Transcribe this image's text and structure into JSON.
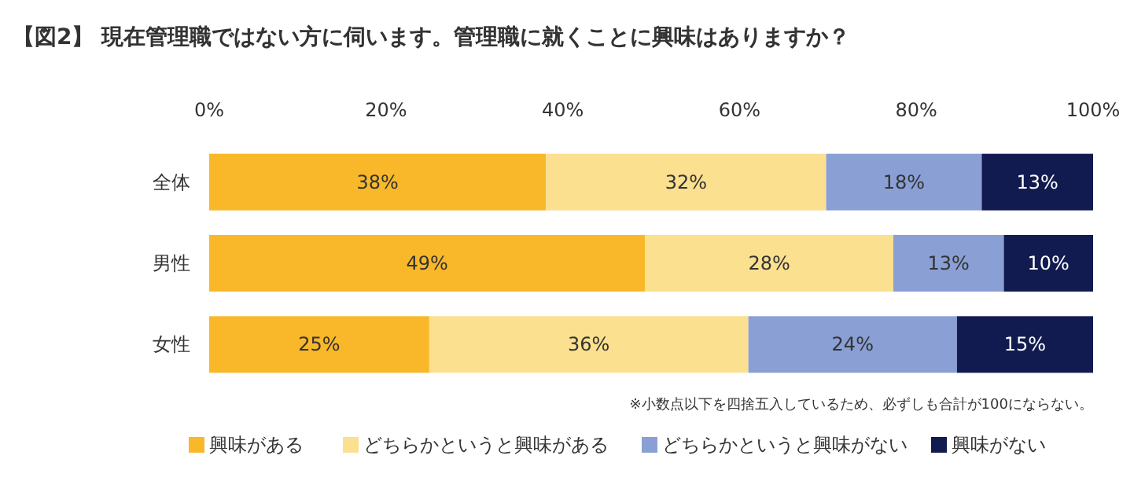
{
  "chart_data": {
    "type": "bar",
    "orientation": "horizontal",
    "stacked": true,
    "title": "【図2】 現在管理職ではない方に伺います。管理職に就くことに興味はありますか？",
    "categories": [
      "全体",
      "男性",
      "女性"
    ],
    "series": [
      {
        "name": "興味がある",
        "color": "#f9b829",
        "values": [
          38.1,
          49.3,
          24.9
        ],
        "value_labels": [
          "38%",
          "49%",
          "25%"
        ]
      },
      {
        "name": "どちらかというと興味がある",
        "color": "#fbe08f",
        "values": [
          31.7,
          28.1,
          36.1
        ],
        "value_labels": [
          "32%",
          "28%",
          "36%"
        ]
      },
      {
        "name": "どちらかというと興味がない",
        "color": "#8a9fd4",
        "values": [
          17.6,
          12.5,
          23.6
        ],
        "value_labels": [
          "18%",
          "13%",
          "24%"
        ]
      },
      {
        "name": "興味がない",
        "color": "#111b4f",
        "values": [
          12.6,
          10.1,
          15.4
        ],
        "value_labels": [
          "13%",
          "10%",
          "15%"
        ]
      }
    ],
    "xlim": [
      0,
      100
    ],
    "xticks": [
      {
        "value": 0,
        "label": "0%"
      },
      {
        "value": 20,
        "label": "20%"
      },
      {
        "value": 40,
        "label": "40%"
      },
      {
        "value": 60,
        "label": "60%"
      },
      {
        "value": 80,
        "label": "80%"
      },
      {
        "value": 100,
        "label": "100%"
      }
    ],
    "legend": "bottom",
    "annotations": [
      "※小数点以下を四捨五入しているため、必ずしも合計が100にならない。"
    ]
  }
}
